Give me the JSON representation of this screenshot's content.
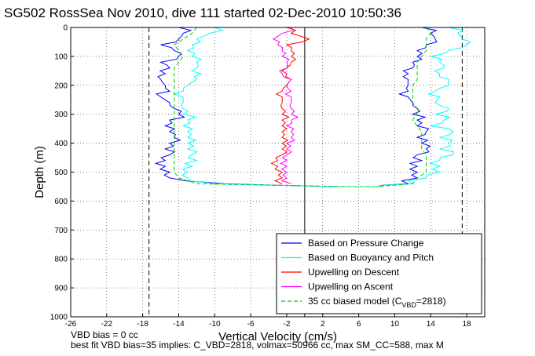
{
  "chart_data": {
    "type": "line",
    "title": "SG502 RossSea Nov 2010, dive 111 started 02-Dec-2010 10:50:36",
    "xlabel": "Vertical Velocity (cm/s)",
    "ylabel": "Depth (m)",
    "xlim": [
      -26,
      20
    ],
    "ylim": [
      0,
      1000
    ],
    "y_reversed": true,
    "xticks": [
      -26,
      -22,
      -18,
      -14,
      -10,
      -6,
      -2,
      2,
      6,
      10,
      14,
      18
    ],
    "xtick_labels": [
      "-26",
      "-22",
      "-18",
      "-14",
      "-10",
      "-6",
      "-2",
      "2",
      "6",
      "10",
      "14",
      "18"
    ],
    "yticks": [
      0,
      100,
      200,
      300,
      400,
      500,
      600,
      700,
      800,
      900,
      1000
    ],
    "ytick_labels": [
      "0",
      "100",
      "200",
      "300",
      "400",
      "500",
      "600",
      "700",
      "800",
      "900",
      "1000"
    ],
    "grid": true,
    "legend_position": "bottom-right",
    "legend": [
      {
        "label": "Based on Pressure Change",
        "color": "#0000ff",
        "style": "solid"
      },
      {
        "label": "Based on Buoyancy and Pitch",
        "color": "#00ffff",
        "style": "solid"
      },
      {
        "label": "Upwelling on Descent",
        "color": "#ff0000",
        "style": "solid"
      },
      {
        "label": "Upwelling on Ascent",
        "color": "#ff00ff",
        "style": "solid"
      },
      {
        "label": "35 cc biased model (C",
        "sub": "VBD",
        "suffix": "=2818)",
        "color": "#00cc00",
        "style": "dashed"
      }
    ],
    "reference_lines": [
      {
        "x": -17.3,
        "style": "dashed",
        "color": "#000000"
      },
      {
        "x": 17.5,
        "style": "dashed",
        "color": "#000000"
      },
      {
        "x": 0,
        "style": "solid",
        "color": "#000000"
      }
    ],
    "series": [
      {
        "name": "Based on Pressure Change",
        "color": "#0000ff",
        "depth": [
          0,
          20,
          40,
          60,
          80,
          100,
          120,
          140,
          160,
          180,
          200,
          220,
          240,
          260,
          280,
          300,
          320,
          340,
          360,
          380,
          400,
          420,
          440,
          460,
          480,
          500,
          520,
          540,
          550
        ],
        "descent_x": [
          -14,
          -13.5,
          -14,
          -16,
          -14.5,
          -14,
          -16,
          -15,
          -15.5,
          -16,
          -15.5,
          -15,
          -16,
          -15,
          -14.5,
          -14,
          -15,
          -15.5,
          -15,
          -14.5,
          -15,
          -15.5,
          -15,
          -15.5,
          -15.5,
          -15,
          -15,
          -9,
          4
        ],
        "ascent_x": [
          13,
          14,
          14.5,
          13.5,
          12.5,
          12.5,
          12,
          12,
          11.5,
          11.5,
          11.5,
          11.5,
          11.5,
          12,
          12.5,
          12,
          12.5,
          12.5,
          13.5,
          12.5,
          13,
          13.5,
          12.5,
          13,
          12.5,
          12.5,
          12.5,
          11.5,
          8
        ]
      },
      {
        "name": "Based on Buoyancy and Pitch",
        "color": "#00ffff",
        "depth": [
          0,
          20,
          40,
          60,
          80,
          100,
          120,
          140,
          160,
          180,
          200,
          220,
          240,
          260,
          280,
          300,
          320,
          340,
          360,
          380,
          400,
          420,
          440,
          460,
          480,
          500,
          520,
          540,
          550
        ],
        "descent_x": [
          -10,
          -10.5,
          -12,
          -12.5,
          -13,
          -12.5,
          -12,
          -12,
          -11.5,
          -12,
          -13,
          -13.5,
          -13.5,
          -13.5,
          -13.5,
          -13.5,
          -13,
          -13.5,
          -13,
          -13,
          -13,
          -13,
          -12.5,
          -12,
          -12.5,
          -13,
          -13,
          -10,
          4
        ],
        "ascent_x": [
          16,
          17,
          17.5,
          18,
          16,
          14,
          15,
          15.5,
          15,
          16,
          16,
          14.5,
          15,
          14.5,
          16,
          14.5,
          15.5,
          14,
          16.5,
          15,
          16,
          15,
          16.5,
          15,
          15,
          15,
          13.5,
          12,
          8
        ]
      },
      {
        "name": "Upwelling on Descent",
        "color": "#ff0000",
        "depth": [
          0,
          20,
          40,
          60,
          80,
          100,
          120,
          140,
          160,
          180,
          200,
          220,
          240,
          260,
          280,
          300,
          320,
          340,
          360,
          380,
          400,
          420,
          440,
          460,
          480,
          500,
          520,
          540
        ],
        "x": [
          -2,
          -1.5,
          0.5,
          -2,
          -1.5,
          -1.5,
          -1.5,
          -2,
          -2,
          -1.5,
          -2,
          -2.5,
          -2.5,
          -2.5,
          -2.5,
          -2.5,
          -2.5,
          -2.5,
          -2.5,
          -2.5,
          -2.5,
          -2.5,
          -2.5,
          -3,
          -3,
          -2.5,
          -2.5,
          -2.5
        ]
      },
      {
        "name": "Upwelling on Ascent",
        "color": "#ff00ff",
        "depth": [
          0,
          20,
          40,
          60,
          80,
          100,
          120,
          140,
          160,
          180,
          200,
          220,
          240,
          260,
          280,
          300,
          320,
          340,
          360,
          380,
          400,
          420,
          440,
          460,
          480,
          500,
          520,
          540
        ],
        "x": [
          -1.5,
          -2.5,
          -3.5,
          -3,
          -2.5,
          -2.5,
          -2,
          -2,
          -2.5,
          -1.5,
          -2,
          -1.5,
          -1.5,
          -1.5,
          -1.5,
          -1.5,
          -1.5,
          -2,
          -1.5,
          -1.5,
          -2,
          -2,
          -2,
          -2,
          -2,
          -2,
          -2,
          -1.5
        ]
      },
      {
        "name": "35 cc biased model (CVBD=2818)",
        "color": "#00cc00",
        "depth": [
          0,
          20,
          40,
          60,
          80,
          100,
          120,
          140,
          160,
          180,
          200,
          220,
          240,
          260,
          280,
          300,
          320,
          340,
          360,
          380,
          400,
          420,
          440,
          460,
          480,
          500,
          520,
          540,
          550
        ],
        "descent_x": [
          -12,
          -12.5,
          -13.5,
          -14.5,
          -14,
          -13.5,
          -14,
          -14.5,
          -14.5,
          -14.5,
          -14.5,
          -14.5,
          -14.5,
          -14.5,
          -14.5,
          -14.5,
          -14.5,
          -14.5,
          -14.5,
          -14.5,
          -14.5,
          -14.5,
          -14.5,
          -14.5,
          -14.5,
          -14.5,
          -14,
          -12,
          4
        ],
        "ascent_x": [
          13.5,
          14,
          13.5,
          13.5,
          13.5,
          13,
          12.5,
          12.5,
          12.5,
          12.5,
          12,
          12,
          12,
          12,
          12.5,
          12.5,
          12,
          12.5,
          13,
          13,
          13,
          13,
          13.5,
          13.5,
          13.5,
          13.5,
          12.5,
          12,
          8
        ]
      }
    ]
  },
  "footnotes": {
    "line1": "VBD bias = 0 cc",
    "line2": "best fit VBD bias=35 implies: C_VBD=2818, volmax=50966 cc, max SM_CC=588, max M"
  }
}
